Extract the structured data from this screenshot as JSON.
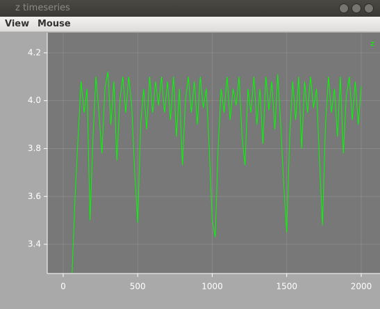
{
  "window": {
    "title": "z timeseries"
  },
  "menu": [
    "View",
    "Mouse"
  ],
  "chart_data": {
    "type": "line",
    "x": [
      60,
      80,
      100,
      120,
      140,
      160,
      180,
      200,
      220,
      240,
      260,
      280,
      300,
      320,
      340,
      360,
      380,
      400,
      420,
      440,
      460,
      480,
      500,
      520,
      540,
      560,
      580,
      600,
      620,
      640,
      660,
      680,
      700,
      720,
      740,
      760,
      780,
      800,
      820,
      840,
      860,
      880,
      900,
      920,
      940,
      960,
      980,
      1000,
      1020,
      1040,
      1060,
      1080,
      1100,
      1120,
      1140,
      1160,
      1180,
      1200,
      1220,
      1240,
      1260,
      1280,
      1300,
      1320,
      1340,
      1360,
      1380,
      1400,
      1420,
      1440,
      1460,
      1480,
      1500,
      1520,
      1540,
      1560,
      1580,
      1600,
      1620,
      1640,
      1660,
      1680,
      1700,
      1720,
      1740,
      1760,
      1780,
      1800,
      1820,
      1840,
      1860,
      1880,
      1900,
      1920,
      1940,
      1960,
      1980,
      2000
    ],
    "series": [
      {
        "name": "z",
        "color": "#00ff00",
        "values": [
          3.28,
          3.6,
          3.85,
          4.08,
          3.95,
          4.05,
          3.5,
          3.85,
          4.1,
          3.95,
          3.78,
          4.05,
          4.12,
          3.9,
          4.08,
          3.75,
          4.0,
          4.1,
          3.95,
          4.1,
          3.98,
          3.7,
          3.49,
          3.9,
          4.05,
          3.88,
          4.1,
          3.95,
          4.08,
          3.98,
          4.1,
          3.95,
          4.08,
          3.92,
          4.1,
          3.85,
          4.05,
          3.73,
          4.0,
          4.1,
          3.95,
          4.08,
          3.9,
          4.1,
          3.97,
          4.05,
          3.8,
          3.5,
          3.43,
          3.8,
          4.05,
          3.95,
          4.1,
          3.92,
          4.05,
          3.98,
          4.1,
          3.85,
          3.73,
          4.05,
          3.95,
          4.1,
          3.9,
          4.05,
          3.82,
          4.1,
          3.96,
          4.08,
          3.88,
          4.11,
          3.9,
          3.65,
          3.45,
          3.85,
          4.08,
          3.92,
          4.1,
          3.8,
          4.08,
          3.95,
          4.1,
          3.97,
          4.05,
          3.75,
          3.48,
          3.9,
          4.1,
          3.95,
          4.05,
          3.85,
          4.1,
          3.78,
          4.02,
          4.1,
          3.92,
          4.08,
          3.9,
          4.06
        ]
      }
    ],
    "xlim": [
      -107,
      2126
    ],
    "ylim": [
      3.278,
      4.284
    ],
    "xticks": [
      0,
      500,
      1000,
      1500,
      2000
    ],
    "yticks": [
      3.4,
      3.6,
      3.8,
      {
        "value": 4,
        "label": "4.0"
      },
      4.2
    ],
    "grid": true,
    "legend": "top-right",
    "background": "#787878"
  }
}
